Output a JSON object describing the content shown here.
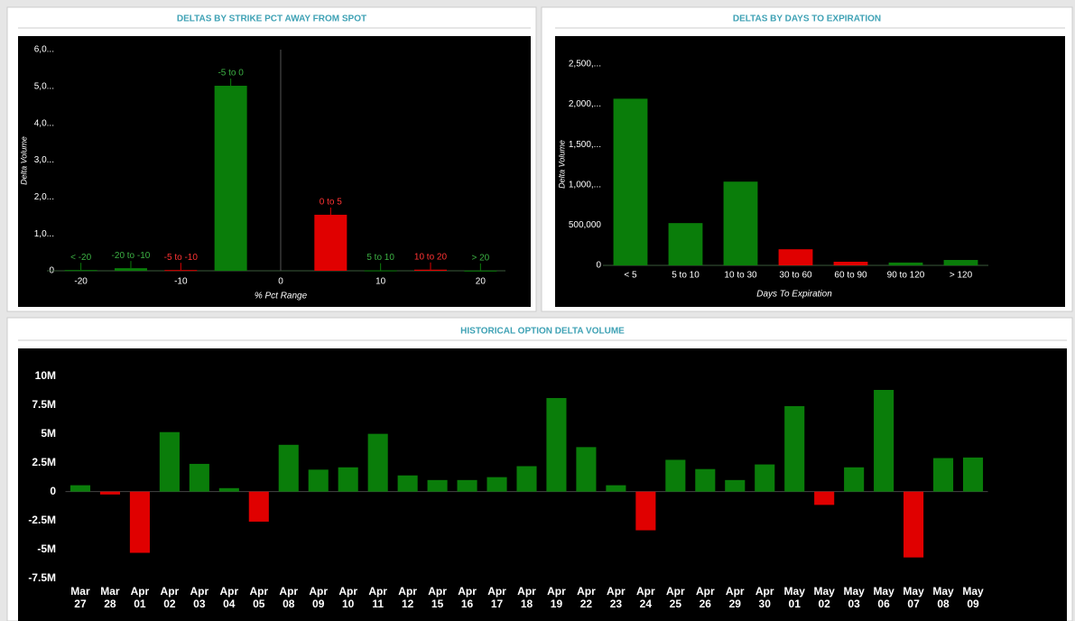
{
  "chart_data": [
    {
      "type": "bar",
      "title": "DELTAS BY STRIKE PCT AWAY FROM SPOT",
      "ylabel": "Delta Volume",
      "xlabel": "% Pct Range",
      "categories": [
        "< -20",
        "-20 to -10",
        "-5 to -10",
        "-5 to 0",
        "0 to 5",
        "5 to 10",
        "10 to 20",
        "> 20"
      ],
      "x": [
        -20,
        -15,
        -10,
        -5,
        5,
        10,
        15,
        20
      ],
      "values": [
        20000,
        70000,
        20000,
        5020000,
        1520000,
        10000,
        30000,
        5000
      ],
      "colors": [
        "#0a7d0a",
        "#0a7d0a",
        "#e00000",
        "#0a7d0a",
        "#e00000",
        "#0a7d0a",
        "#e00000",
        "#0a7d0a"
      ],
      "xlim": [
        -23.4,
        22.5
      ],
      "xticks": [
        -20,
        -10,
        0,
        10,
        20
      ],
      "ylim": [
        0,
        6000000
      ],
      "yticks": [
        {
          "value": 0,
          "label": "0"
        },
        {
          "value": 1000000,
          "label": "1,0..."
        },
        {
          "value": 2000000,
          "label": "2,0..."
        },
        {
          "value": 3000000,
          "label": "3,0..."
        },
        {
          "value": 4000000,
          "label": "4,0..."
        },
        {
          "value": 5000000,
          "label": "5,0..."
        },
        {
          "value": 6000000,
          "label": "6,0..."
        }
      ]
    },
    {
      "type": "bar",
      "title": "DELTAS BY DAYS TO EXPIRATION",
      "ylabel": "Delta Volume",
      "xlabel": "Days To Expiration",
      "categories": [
        "< 5",
        "5 to 10",
        "10 to 30",
        "30 to 60",
        "60 to 90",
        "90 to 120",
        "> 120"
      ],
      "values": [
        2070000,
        525000,
        1040000,
        200000,
        45000,
        35000,
        67000
      ],
      "colors": [
        "#0a7d0a",
        "#0a7d0a",
        "#0a7d0a",
        "#e00000",
        "#e00000",
        "#0a7d0a",
        "#0a7d0a"
      ],
      "ylim": [
        0,
        2500000
      ],
      "yticks": [
        0,
        {
          "value": 500000,
          "label": "500,000"
        },
        {
          "value": 1000000,
          "label": "1,000,..."
        },
        {
          "value": 1500000,
          "label": "1,500,..."
        },
        {
          "value": 2000000,
          "label": "2,000,..."
        },
        {
          "value": 2500000,
          "label": "2,500,..."
        }
      ]
    },
    {
      "type": "bar",
      "title": "HISTORICAL OPTION DELTA VOLUME",
      "categories": [
        "Mar 27",
        "Mar 28",
        "Apr 01",
        "Apr 02",
        "Apr 03",
        "Apr 04",
        "Apr 05",
        "Apr 08",
        "Apr 09",
        "Apr 10",
        "Apr 11",
        "Apr 12",
        "Apr 15",
        "Apr 16",
        "Apr 17",
        "Apr 18",
        "Apr 19",
        "Apr 22",
        "Apr 23",
        "Apr 24",
        "Apr 25",
        "Apr 26",
        "Apr 29",
        "Apr 30",
        "May 01",
        "May 02",
        "May 03",
        "May 06",
        "May 07",
        "May 08",
        "May 09"
      ],
      "values": [
        550000,
        -250000,
        -5300000,
        5150000,
        2400000,
        300000,
        -2600000,
        4050000,
        1900000,
        2100000,
        5000000,
        1400000,
        1000000,
        1000000,
        1250000,
        2200000,
        8100000,
        3850000,
        550000,
        -3350000,
        2750000,
        1950000,
        1000000,
        2350000,
        7400000,
        -1150000,
        2100000,
        8800000,
        -5700000,
        2900000,
        2950000
      ],
      "positive_color": "#0a7d0a",
      "negative_color": "#e00000",
      "ylim": [
        -7900000,
        11300000
      ],
      "yticks": [
        {
          "value": -7500000,
          "label": "-7.5M"
        },
        {
          "value": -5000000,
          "label": "-5M"
        },
        {
          "value": -2500000,
          "label": "-2.5M"
        },
        0,
        {
          "value": 2500000,
          "label": "2.5M"
        },
        {
          "value": 5000000,
          "label": "5M"
        },
        {
          "value": 7500000,
          "label": "7.5M"
        },
        {
          "value": 10000000,
          "label": "10M"
        }
      ]
    }
  ]
}
